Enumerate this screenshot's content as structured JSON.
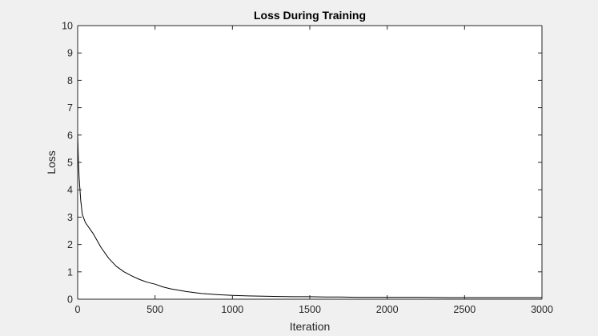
{
  "chart_data": {
    "type": "line",
    "title": "Loss During Training",
    "xlabel": "Iteration",
    "ylabel": "Loss",
    "xlim": [
      0,
      3000
    ],
    "ylim": [
      0,
      10
    ],
    "xticks": [
      0,
      500,
      1000,
      1500,
      2000,
      2500,
      3000
    ],
    "yticks": [
      0,
      1,
      2,
      3,
      4,
      5,
      6,
      7,
      8,
      9,
      10
    ],
    "grid": false,
    "legend": "none",
    "line_color": "#000000",
    "series": [
      {
        "x": [
          0,
          5,
          10,
          20,
          30,
          50,
          75,
          100,
          150,
          200,
          250,
          300,
          350,
          400,
          450,
          500,
          550,
          600,
          700,
          800,
          900,
          1000,
          1100,
          1200,
          1300,
          1400,
          1500,
          1600,
          1700,
          1800,
          1900,
          2000,
          2200,
          2400,
          2600,
          2800,
          3000
        ],
        "y": [
          6.1,
          5.0,
          4.4,
          3.6,
          3.1,
          2.8,
          2.6,
          2.4,
          1.9,
          1.5,
          1.2,
          1.0,
          0.85,
          0.72,
          0.62,
          0.55,
          0.45,
          0.38,
          0.28,
          0.21,
          0.17,
          0.14,
          0.12,
          0.11,
          0.1,
          0.09,
          0.09,
          0.08,
          0.08,
          0.07,
          0.07,
          0.07,
          0.07,
          0.06,
          0.06,
          0.06,
          0.06
        ]
      }
    ]
  }
}
